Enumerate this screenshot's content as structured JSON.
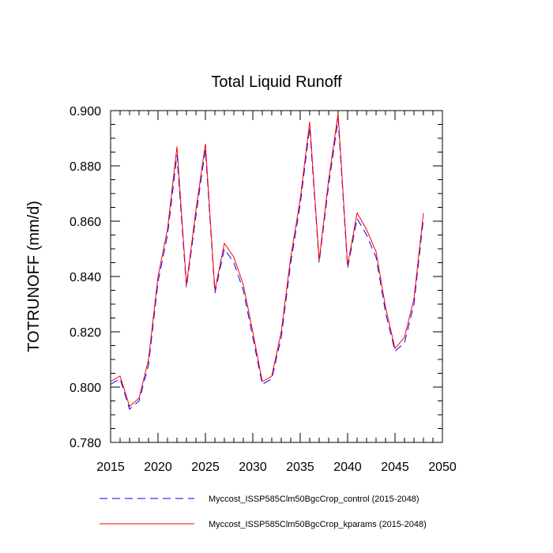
{
  "chart_data": {
    "type": "line",
    "title": "Total Liquid Runoff",
    "xlabel": "",
    "ylabel": "TOTRUNOFF  (mm/d)",
    "xlim": [
      2015,
      2050
    ],
    "ylim": [
      0.78,
      0.9
    ],
    "xticks": [
      2015,
      2020,
      2025,
      2030,
      2035,
      2040,
      2045,
      2050
    ],
    "yticks": [
      0.78,
      0.8,
      0.82,
      0.84,
      0.86,
      0.88,
      0.9
    ],
    "x": [
      2015,
      2016,
      2017,
      2018,
      2019,
      2020,
      2021,
      2022,
      2023,
      2024,
      2025,
      2026,
      2027,
      2028,
      2029,
      2030,
      2031,
      2032,
      2033,
      2034,
      2035,
      2036,
      2037,
      2038,
      2039,
      2040,
      2041,
      2042,
      2043,
      2044,
      2045,
      2046,
      2047,
      2048
    ],
    "series": [
      {
        "name": "Myccost_ISSP585Clm50BgcCrop_control (2015-2048)",
        "color": "#0000ff",
        "style": "dashed",
        "values": [
          0.801,
          0.803,
          0.792,
          0.795,
          0.808,
          0.838,
          0.855,
          0.884,
          0.836,
          0.862,
          0.886,
          0.834,
          0.85,
          0.845,
          0.835,
          0.818,
          0.801,
          0.803,
          0.818,
          0.845,
          0.866,
          0.894,
          0.845,
          0.873,
          0.897,
          0.843,
          0.861,
          0.855,
          0.847,
          0.827,
          0.813,
          0.816,
          0.83,
          0.861
        ]
      },
      {
        "name": "Myccost_ISSP585Clm50BgcCrop_kparams (2015-2048)",
        "color": "#ff0000",
        "style": "solid",
        "values": [
          0.802,
          0.804,
          0.793,
          0.796,
          0.81,
          0.84,
          0.857,
          0.887,
          0.837,
          0.864,
          0.888,
          0.835,
          0.852,
          0.847,
          0.837,
          0.82,
          0.802,
          0.804,
          0.82,
          0.847,
          0.868,
          0.896,
          0.846,
          0.875,
          0.899,
          0.844,
          0.863,
          0.857,
          0.849,
          0.829,
          0.814,
          0.818,
          0.832,
          0.863
        ]
      }
    ],
    "grid": false,
    "legend_position": "bottom"
  }
}
